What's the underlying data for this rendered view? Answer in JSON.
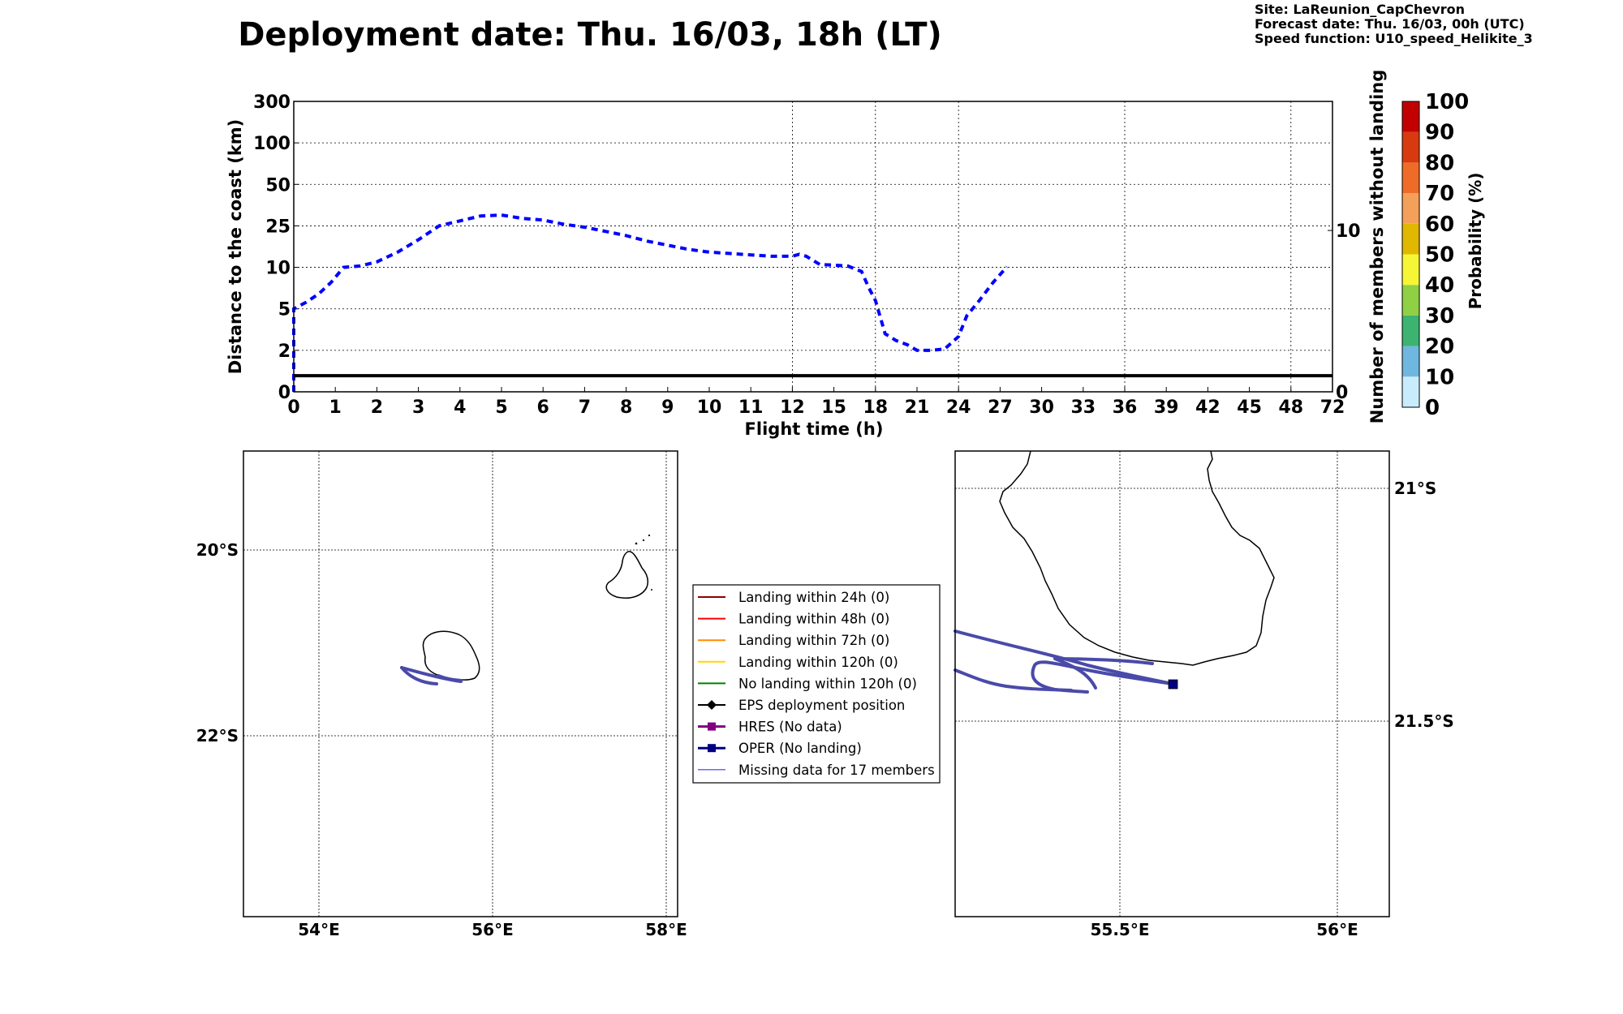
{
  "title": "Deployment date: Thu. 16/03, 18h (LT)",
  "info": {
    "site": "Site: LaReunion_CapChevron",
    "forecast": "Forecast date: Thu. 16/03, 00h (UTC)",
    "speed": "Speed function: U10_speed_Helikite_3"
  },
  "colors": {
    "dist_line": "#0000ff",
    "oper_track": "#4a4aaa",
    "oper_marker": "#000080",
    "colorbar": [
      "#c9ecfd",
      "#6fb7df",
      "#3cb371",
      "#8fd045",
      "#f6f636",
      "#e0b800",
      "#f5a05a",
      "#ef6c28",
      "#d83a10",
      "#c20000",
      "#70001a"
    ]
  },
  "chart_data": [
    {
      "type": "line",
      "xlabel": "Flight time (h)",
      "ylabel": "Distance to the coast (km)",
      "ylabel2": "Number of members without landing",
      "x_ticks": [
        "0",
        "1",
        "2",
        "3",
        "4",
        "5",
        "6",
        "7",
        "8",
        "9",
        "10",
        "11",
        "12",
        "15",
        "18",
        "21",
        "24",
        "27",
        "30",
        "33",
        "36",
        "39",
        "42",
        "45",
        "48",
        "72"
      ],
      "y_ticks": [
        "0",
        "2",
        "5",
        "10",
        "25",
        "50",
        "100",
        "300"
      ],
      "y2_ticks": [
        "0",
        "10"
      ],
      "grid": true,
      "series": [
        {
          "style": "dashed",
          "points": [
            [
              0,
              0
            ],
            [
              0,
              5
            ],
            [
              0.3,
              5.8
            ],
            [
              0.6,
              6.8
            ],
            [
              0.9,
              8.2
            ],
            [
              1.2,
              10
            ],
            [
              1.6,
              10.5
            ],
            [
              2,
              12
            ],
            [
              2.5,
              15.5
            ],
            [
              3,
              20
            ],
            [
              3.5,
              25
            ],
            [
              4,
              28
            ],
            [
              4.5,
              31
            ],
            [
              5,
              31.5
            ],
            [
              5.5,
              29.5
            ],
            [
              6,
              28.5
            ],
            [
              6.5,
              26
            ],
            [
              7,
              24.5
            ],
            [
              7.5,
              23
            ],
            [
              8,
              21.5
            ],
            [
              8.5,
              19.5
            ],
            [
              9,
              18
            ],
            [
              9.5,
              16.5
            ],
            [
              10,
              15.5
            ],
            [
              10.5,
              15
            ],
            [
              11,
              14.5
            ],
            [
              11.5,
              14
            ],
            [
              12,
              14
            ],
            [
              12.5,
              14.7
            ],
            [
              13,
              14
            ],
            [
              14,
              11
            ],
            [
              15,
              10.8
            ],
            [
              16,
              10.5
            ],
            [
              17,
              9.5
            ],
            [
              17.5,
              7.6
            ],
            [
              18,
              6
            ],
            [
              18.7,
              3.2
            ],
            [
              19.5,
              2.7
            ],
            [
              20.3,
              2.4
            ],
            [
              21,
              2
            ],
            [
              22,
              2
            ],
            [
              23,
              2.1
            ],
            [
              24,
              3
            ],
            [
              24.6,
              4.5
            ],
            [
              25.5,
              6
            ],
            [
              26.5,
              8.2
            ],
            [
              27.5,
              10.2
            ]
          ]
        },
        {
          "style": "solid",
          "label_axis": "right",
          "points": [
            [
              0,
              1
            ],
            [
              72,
              1
            ]
          ]
        }
      ]
    },
    {
      "type": "heatmap",
      "label": "Probability (%)",
      "ticks": [
        "0",
        "10",
        "20",
        "30",
        "40",
        "50",
        "60",
        "70",
        "80",
        "90",
        "100"
      ]
    },
    {
      "type": "map",
      "lon_ticks": [
        "54°E",
        "56°E",
        "58°E"
      ],
      "lat_ticks": [
        "20°S",
        "22°S"
      ]
    },
    {
      "type": "map",
      "lon_ticks": [
        "55.5°E",
        "56°E"
      ],
      "lat_ticks": [
        "21°S",
        "21.5°S"
      ]
    }
  ],
  "legend": [
    {
      "label": "Landing within 24h (0)",
      "color": "#8b0000",
      "marker": "none",
      "width": 2
    },
    {
      "label": "Landing within 48h (0)",
      "color": "#ff0000",
      "marker": "none",
      "width": 2
    },
    {
      "label": "Landing within 72h (0)",
      "color": "#ff8c00",
      "marker": "none",
      "width": 2
    },
    {
      "label": "Landing within 120h (0)",
      "color": "#ffd700",
      "marker": "none",
      "width": 2
    },
    {
      "label": "No landing within 120h (0)",
      "color": "#007f00",
      "marker": "none",
      "width": 2
    },
    {
      "label": "EPS deployment position",
      "color": "#000000",
      "marker": "diamond",
      "width": 2
    },
    {
      "label": "HRES (No data)",
      "color": "#800080",
      "marker": "square",
      "width": 3
    },
    {
      "label": "OPER (No landing)",
      "color": "#000080",
      "marker": "square",
      "width": 3
    },
    {
      "label": "Missing data for 17 members",
      "color": "#6a6af0",
      "marker": "none",
      "width": 1.5
    }
  ]
}
